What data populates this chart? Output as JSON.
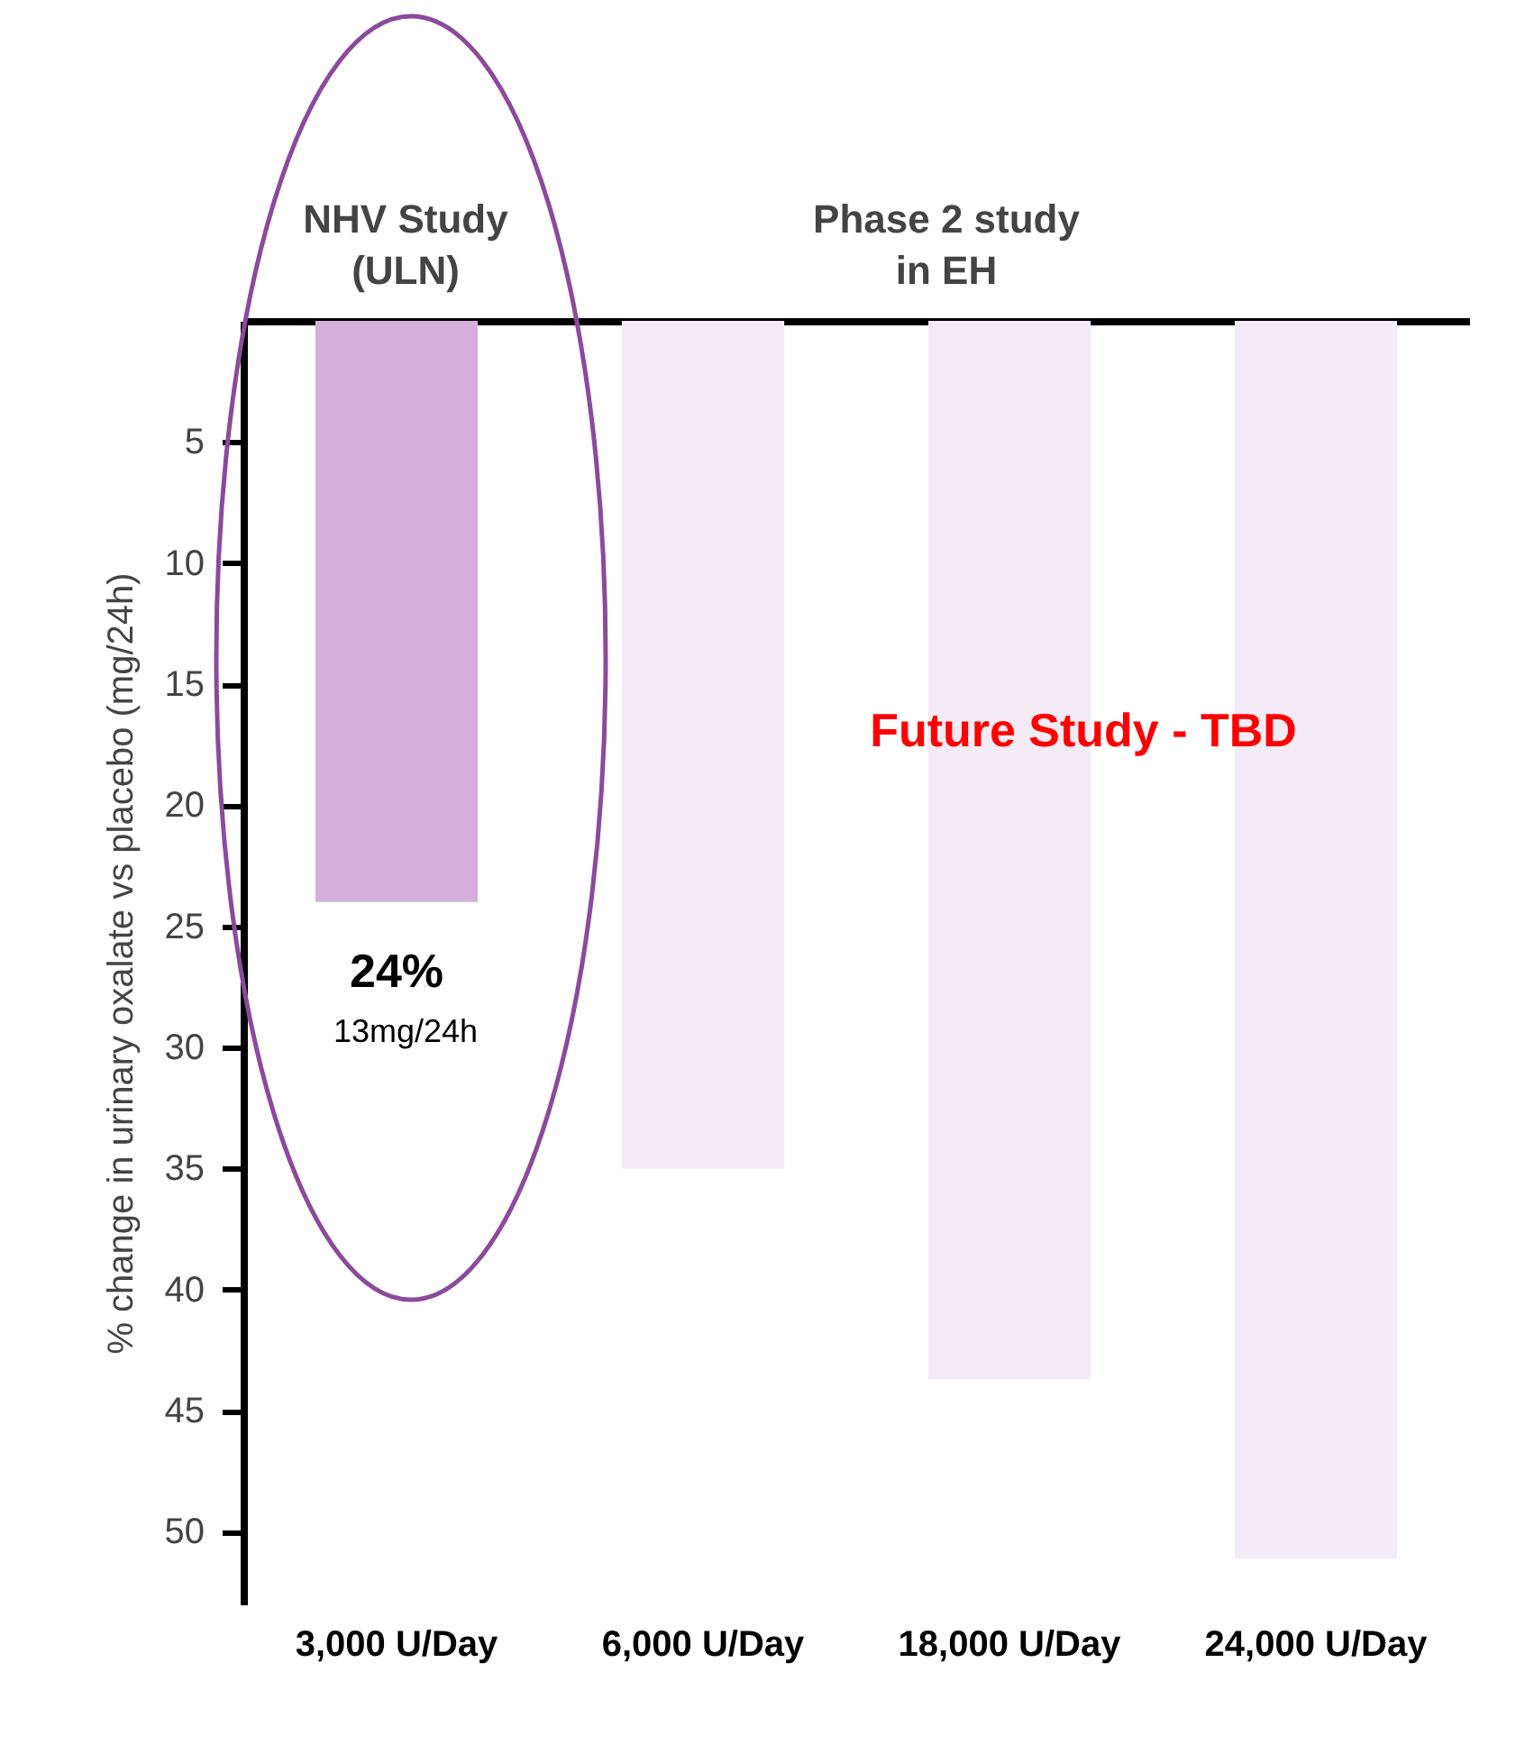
{
  "chart_data": {
    "type": "bar",
    "ylabel": "% change in urinary oxalate vs placebo (mg/24h)",
    "categories": [
      "3,000 U/Day",
      "6,000 U/Day",
      "18,000 U/Day",
      "24,000 U/Day"
    ],
    "values": [
      24,
      35,
      43.7,
      51.1
    ],
    "colors": [
      "#d4afdc",
      "#f3ebf5",
      "#f3ebf5",
      "#f3ebf5"
    ],
    "value_labels": [
      "24%",
      null,
      null,
      null
    ],
    "ylim": [
      53,
      0
    ],
    "yticks": [
      5,
      10,
      15,
      20,
      25,
      30,
      35,
      40,
      45,
      50
    ],
    "grid": false,
    "legend": false,
    "annotations": [
      "NHV Study\n(ULN)",
      "Phase 2 study\nin EH",
      "Future Study - TBD",
      "13mg/24h"
    ]
  }
}
